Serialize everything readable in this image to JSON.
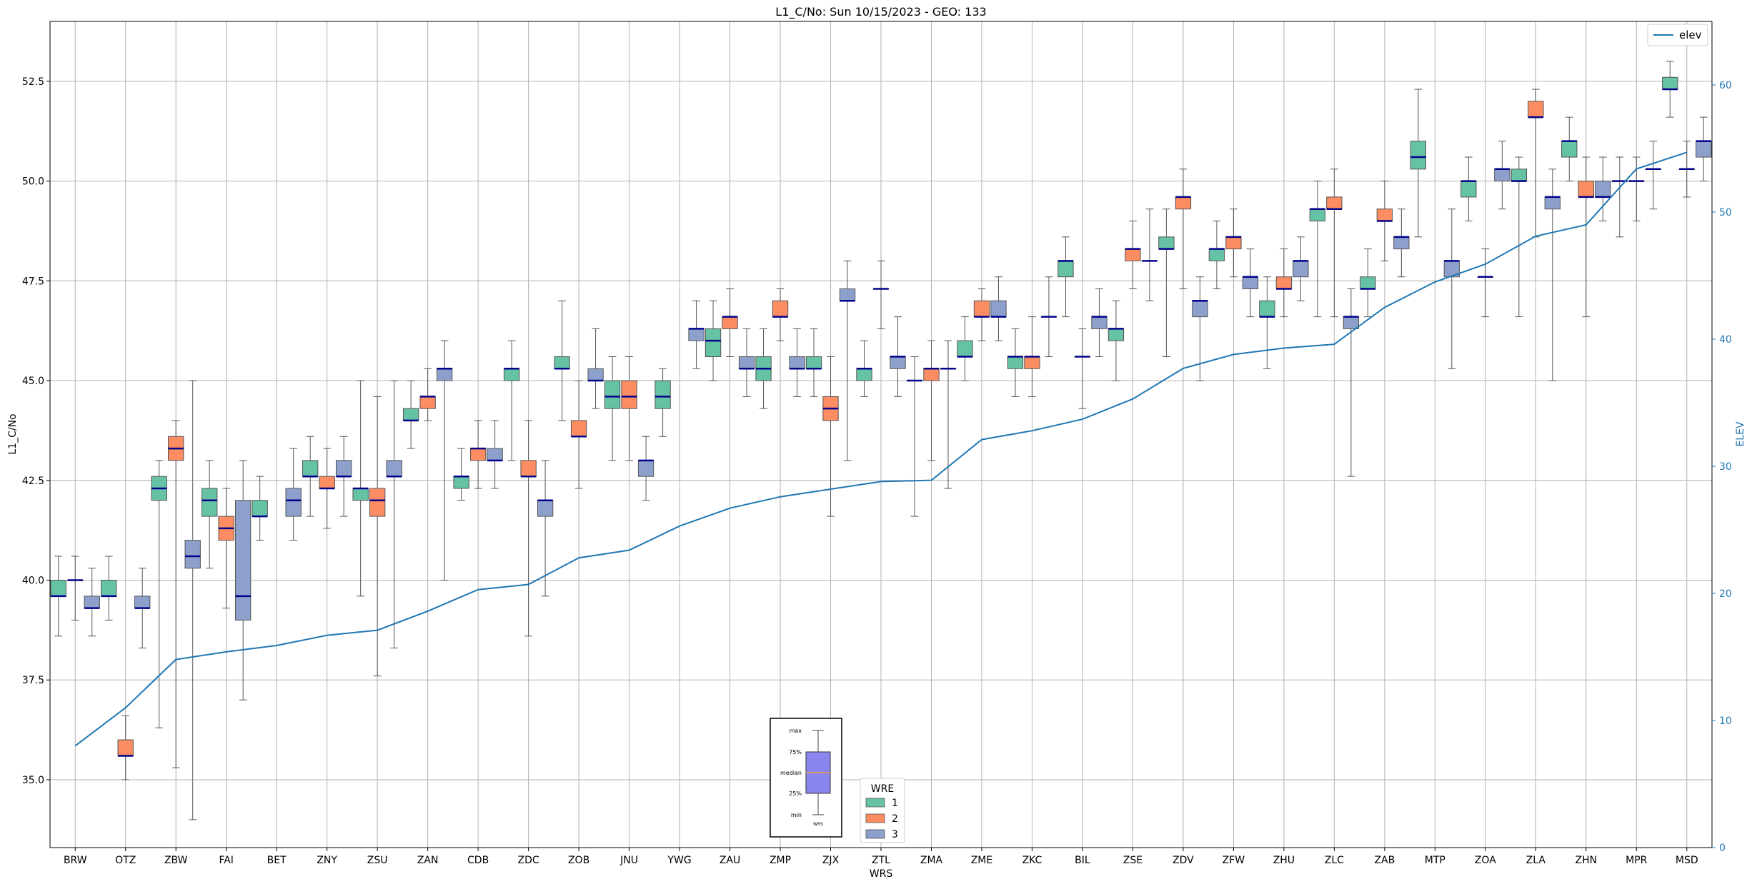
{
  "chart_data": {
    "type": "box",
    "title": "L1_C/No: Sun 10/15/2023 - GEO: 133",
    "xlabel": "WRS",
    "ylabel": "L1_C/No",
    "y2label": "ELEV",
    "ylim": [
      33.3,
      54.0
    ],
    "y2lim": [
      0,
      65
    ],
    "yticks": [
      "35.0",
      "37.5",
      "40.0",
      "42.5",
      "45.0",
      "47.5",
      "50.0",
      "52.5"
    ],
    "y2ticks": [
      "0",
      "10",
      "20",
      "30",
      "40",
      "50",
      "60"
    ],
    "grid": true,
    "categories": [
      "BRW",
      "OTZ",
      "ZBW",
      "FAI",
      "BET",
      "ZNY",
      "ZSU",
      "ZAN",
      "CDB",
      "ZDC",
      "ZOB",
      "JNU",
      "YWG",
      "ZAU",
      "ZMP",
      "ZJX",
      "ZTL",
      "ZMA",
      "ZME",
      "ZKC",
      "BIL",
      "ZSE",
      "ZDV",
      "ZFW",
      "ZHU",
      "ZLC",
      "ZAB",
      "MTP",
      "ZOA",
      "ZLA",
      "ZHN",
      "MPR",
      "MSD"
    ],
    "wre_colors": {
      "1": "#66c2a5",
      "2": "#fc8d62",
      "3": "#8da0cb"
    },
    "median_color": "#00008b",
    "line_series": {
      "name": "elev",
      "color": "#1f77b4",
      "values": [
        8.0,
        11.0,
        14.8,
        15.4,
        15.9,
        16.7,
        17.1,
        18.6,
        20.3,
        20.7,
        22.8,
        23.4,
        25.3,
        26.7,
        27.6,
        28.2,
        28.8,
        28.9,
        32.1,
        32.8,
        33.7,
        35.3,
        37.7,
        38.8,
        39.3,
        39.6,
        42.5,
        44.5,
        45.9,
        48.1,
        49.0,
        53.4,
        54.7
      ]
    },
    "boxes": [
      {
        "station": "BRW",
        "wre": 1,
        "min": 38.6,
        "q1": 39.6,
        "med": 39.6,
        "q3": 40.0,
        "max": 40.6
      },
      {
        "station": "BRW",
        "wre": 2,
        "min": 39.0,
        "q1": 40.0,
        "med": 40.0,
        "q3": 40.0,
        "max": 40.6
      },
      {
        "station": "BRW",
        "wre": 3,
        "min": 38.6,
        "q1": 39.3,
        "med": 39.3,
        "q3": 39.6,
        "max": 40.3
      },
      {
        "station": "OTZ",
        "wre": 1,
        "min": 39.0,
        "q1": 39.6,
        "med": 39.6,
        "q3": 40.0,
        "max": 40.6
      },
      {
        "station": "OTZ",
        "wre": 2,
        "min": 35.0,
        "q1": 35.6,
        "med": 35.6,
        "q3": 36.0,
        "max": 36.6
      },
      {
        "station": "OTZ",
        "wre": 3,
        "min": 38.3,
        "q1": 39.3,
        "med": 39.3,
        "q3": 39.6,
        "max": 40.3
      },
      {
        "station": "ZBW",
        "wre": 1,
        "min": 36.3,
        "q1": 42.0,
        "med": 42.3,
        "q3": 42.6,
        "max": 43.0
      },
      {
        "station": "ZBW",
        "wre": 2,
        "min": 35.3,
        "q1": 43.0,
        "med": 43.3,
        "q3": 43.6,
        "max": 44.0
      },
      {
        "station": "ZBW",
        "wre": 3,
        "min": 34.0,
        "q1": 40.3,
        "med": 40.6,
        "q3": 41.0,
        "max": 45.0
      },
      {
        "station": "FAI",
        "wre": 1,
        "min": 40.3,
        "q1": 41.6,
        "med": 42.0,
        "q3": 42.3,
        "max": 43.0
      },
      {
        "station": "FAI",
        "wre": 2,
        "min": 39.3,
        "q1": 41.0,
        "med": 41.3,
        "q3": 41.6,
        "max": 42.3
      },
      {
        "station": "FAI",
        "wre": 3,
        "min": 37.0,
        "q1": 39.0,
        "med": 39.6,
        "q3": 42.0,
        "max": 43.0
      },
      {
        "station": "BET",
        "wre": 1,
        "min": 41.0,
        "q1": 41.6,
        "med": 41.6,
        "q3": 42.0,
        "max": 42.6
      },
      {
        "station": "BET",
        "wre": 3,
        "min": 41.0,
        "q1": 41.6,
        "med": 42.0,
        "q3": 42.3,
        "max": 43.3
      },
      {
        "station": "ZNY",
        "wre": 1,
        "min": 41.6,
        "q1": 42.6,
        "med": 42.6,
        "q3": 43.0,
        "max": 43.6
      },
      {
        "station": "ZNY",
        "wre": 2,
        "min": 41.3,
        "q1": 42.3,
        "med": 42.3,
        "q3": 42.6,
        "max": 43.3
      },
      {
        "station": "ZNY",
        "wre": 3,
        "min": 41.6,
        "q1": 42.6,
        "med": 42.6,
        "q3": 43.0,
        "max": 43.6
      },
      {
        "station": "ZSU",
        "wre": 1,
        "min": 39.6,
        "q1": 42.0,
        "med": 42.3,
        "q3": 42.3,
        "max": 45.0
      },
      {
        "station": "ZSU",
        "wre": 2,
        "min": 37.6,
        "q1": 41.6,
        "med": 42.0,
        "q3": 42.3,
        "max": 44.6
      },
      {
        "station": "ZSU",
        "wre": 3,
        "min": 38.3,
        "q1": 42.6,
        "med": 42.6,
        "q3": 43.0,
        "max": 45.0
      },
      {
        "station": "ZAN",
        "wre": 1,
        "min": 43.3,
        "q1": 44.0,
        "med": 44.0,
        "q3": 44.3,
        "max": 45.0
      },
      {
        "station": "ZAN",
        "wre": 2,
        "min": 44.0,
        "q1": 44.3,
        "med": 44.6,
        "q3": 44.6,
        "max": 45.3
      },
      {
        "station": "ZAN",
        "wre": 3,
        "min": 40.0,
        "q1": 45.0,
        "med": 45.3,
        "q3": 45.3,
        "max": 46.0
      },
      {
        "station": "CDB",
        "wre": 1,
        "min": 42.0,
        "q1": 42.3,
        "med": 42.6,
        "q3": 42.6,
        "max": 43.3
      },
      {
        "station": "CDB",
        "wre": 2,
        "min": 42.3,
        "q1": 43.0,
        "med": 43.3,
        "q3": 43.3,
        "max": 44.0
      },
      {
        "station": "CDB",
        "wre": 3,
        "min": 42.3,
        "q1": 43.0,
        "med": 43.0,
        "q3": 43.3,
        "max": 44.0
      },
      {
        "station": "ZDC",
        "wre": 1,
        "min": 43.0,
        "q1": 45.0,
        "med": 45.3,
        "q3": 45.3,
        "max": 46.0
      },
      {
        "station": "ZDC",
        "wre": 2,
        "min": 38.6,
        "q1": 42.6,
        "med": 42.6,
        "q3": 43.0,
        "max": 44.0
      },
      {
        "station": "ZDC",
        "wre": 3,
        "min": 39.6,
        "q1": 41.6,
        "med": 42.0,
        "q3": 42.0,
        "max": 43.0
      },
      {
        "station": "ZOB",
        "wre": 1,
        "min": 44.0,
        "q1": 45.3,
        "med": 45.3,
        "q3": 45.6,
        "max": 47.0
      },
      {
        "station": "ZOB",
        "wre": 2,
        "min": 42.3,
        "q1": 43.6,
        "med": 43.6,
        "q3": 44.0,
        "max": 45.0
      },
      {
        "station": "ZOB",
        "wre": 3,
        "min": 44.3,
        "q1": 45.0,
        "med": 45.0,
        "q3": 45.3,
        "max": 46.3
      },
      {
        "station": "JNU",
        "wre": 1,
        "min": 43.0,
        "q1": 44.3,
        "med": 44.6,
        "q3": 45.0,
        "max": 45.6
      },
      {
        "station": "JNU",
        "wre": 2,
        "min": 43.0,
        "q1": 44.3,
        "med": 44.6,
        "q3": 45.0,
        "max": 45.6
      },
      {
        "station": "JNU",
        "wre": 3,
        "min": 42.0,
        "q1": 42.6,
        "med": 43.0,
        "q3": 43.0,
        "max": 43.6
      },
      {
        "station": "YWG",
        "wre": 1,
        "min": 43.6,
        "q1": 44.3,
        "med": 44.6,
        "q3": 45.0,
        "max": 45.3
      },
      {
        "station": "YWG",
        "wre": 3,
        "min": 45.3,
        "q1": 46.0,
        "med": 46.3,
        "q3": 46.3,
        "max": 47.0
      },
      {
        "station": "ZAU",
        "wre": 1,
        "min": 45.0,
        "q1": 45.6,
        "med": 46.0,
        "q3": 46.3,
        "max": 47.0
      },
      {
        "station": "ZAU",
        "wre": 2,
        "min": 45.6,
        "q1": 46.3,
        "med": 46.6,
        "q3": 46.6,
        "max": 47.3
      },
      {
        "station": "ZAU",
        "wre": 3,
        "min": 44.6,
        "q1": 45.3,
        "med": 45.3,
        "q3": 45.6,
        "max": 46.3
      },
      {
        "station": "ZMP",
        "wre": 1,
        "min": 44.3,
        "q1": 45.0,
        "med": 45.3,
        "q3": 45.6,
        "max": 46.3
      },
      {
        "station": "ZMP",
        "wre": 2,
        "min": 46.0,
        "q1": 46.6,
        "med": 46.6,
        "q3": 47.0,
        "max": 47.3
      },
      {
        "station": "ZMP",
        "wre": 3,
        "min": 44.6,
        "q1": 45.3,
        "med": 45.3,
        "q3": 45.6,
        "max": 46.3
      },
      {
        "station": "ZJX",
        "wre": 1,
        "min": 44.6,
        "q1": 45.3,
        "med": 45.3,
        "q3": 45.6,
        "max": 46.3
      },
      {
        "station": "ZJX",
        "wre": 2,
        "min": 41.6,
        "q1": 44.0,
        "med": 44.3,
        "q3": 44.6,
        "max": 45.6
      },
      {
        "station": "ZJX",
        "wre": 3,
        "min": 43.0,
        "q1": 47.0,
        "med": 47.0,
        "q3": 47.3,
        "max": 48.0
      },
      {
        "station": "ZTL",
        "wre": 1,
        "min": 44.6,
        "q1": 45.0,
        "med": 45.3,
        "q3": 45.3,
        "max": 46.0
      },
      {
        "station": "ZTL",
        "wre": 2,
        "min": 46.3,
        "q1": 47.3,
        "med": 47.3,
        "q3": 47.3,
        "max": 48.0
      },
      {
        "station": "ZTL",
        "wre": 3,
        "min": 44.6,
        "q1": 45.3,
        "med": 45.6,
        "q3": 45.6,
        "max": 46.6
      },
      {
        "station": "ZMA",
        "wre": 1,
        "min": 41.6,
        "q1": 45.0,
        "med": 45.0,
        "q3": 45.0,
        "max": 45.6
      },
      {
        "station": "ZMA",
        "wre": 2,
        "min": 43.0,
        "q1": 45.0,
        "med": 45.3,
        "q3": 45.3,
        "max": 46.0
      },
      {
        "station": "ZMA",
        "wre": 3,
        "min": 42.3,
        "q1": 45.3,
        "med": 45.3,
        "q3": 45.3,
        "max": 46.0
      },
      {
        "station": "ZME",
        "wre": 1,
        "min": 45.0,
        "q1": 45.6,
        "med": 45.6,
        "q3": 46.0,
        "max": 46.6
      },
      {
        "station": "ZME",
        "wre": 2,
        "min": 46.0,
        "q1": 46.6,
        "med": 46.6,
        "q3": 47.0,
        "max": 47.3
      },
      {
        "station": "ZME",
        "wre": 3,
        "min": 46.0,
        "q1": 46.6,
        "med": 46.6,
        "q3": 47.0,
        "max": 47.6
      },
      {
        "station": "ZKC",
        "wre": 1,
        "min": 44.6,
        "q1": 45.3,
        "med": 45.6,
        "q3": 45.6,
        "max": 46.3
      },
      {
        "station": "ZKC",
        "wre": 2,
        "min": 44.6,
        "q1": 45.3,
        "med": 45.6,
        "q3": 45.6,
        "max": 46.6
      },
      {
        "station": "ZKC",
        "wre": 3,
        "min": 45.6,
        "q1": 46.6,
        "med": 46.6,
        "q3": 46.6,
        "max": 47.6
      },
      {
        "station": "BIL",
        "wre": 1,
        "min": 46.6,
        "q1": 47.6,
        "med": 48.0,
        "q3": 48.0,
        "max": 48.6
      },
      {
        "station": "BIL",
        "wre": 2,
        "min": 44.3,
        "q1": 45.6,
        "med": 45.6,
        "q3": 45.6,
        "max": 46.3
      },
      {
        "station": "BIL",
        "wre": 3,
        "min": 45.6,
        "q1": 46.3,
        "med": 46.6,
        "q3": 46.6,
        "max": 47.3
      },
      {
        "station": "ZSE",
        "wre": 1,
        "min": 45.0,
        "q1": 46.0,
        "med": 46.3,
        "q3": 46.3,
        "max": 47.0
      },
      {
        "station": "ZSE",
        "wre": 2,
        "min": 47.3,
        "q1": 48.0,
        "med": 48.3,
        "q3": 48.3,
        "max": 49.0
      },
      {
        "station": "ZSE",
        "wre": 3,
        "min": 47.0,
        "q1": 48.0,
        "med": 48.0,
        "q3": 48.0,
        "max": 49.3
      },
      {
        "station": "ZDV",
        "wre": 1,
        "min": 45.6,
        "q1": 48.3,
        "med": 48.3,
        "q3": 48.6,
        "max": 49.3
      },
      {
        "station": "ZDV",
        "wre": 2,
        "min": 47.3,
        "q1": 49.3,
        "med": 49.6,
        "q3": 49.6,
        "max": 50.3
      },
      {
        "station": "ZDV",
        "wre": 3,
        "min": 45.0,
        "q1": 46.6,
        "med": 47.0,
        "q3": 47.0,
        "max": 47.6
      },
      {
        "station": "ZFW",
        "wre": 1,
        "min": 47.3,
        "q1": 48.0,
        "med": 48.3,
        "q3": 48.3,
        "max": 49.0
      },
      {
        "station": "ZFW",
        "wre": 2,
        "min": 47.6,
        "q1": 48.3,
        "med": 48.6,
        "q3": 48.6,
        "max": 49.3
      },
      {
        "station": "ZFW",
        "wre": 3,
        "min": 46.6,
        "q1": 47.3,
        "med": 47.6,
        "q3": 47.6,
        "max": 48.3
      },
      {
        "station": "ZHU",
        "wre": 1,
        "min": 45.3,
        "q1": 46.6,
        "med": 46.6,
        "q3": 47.0,
        "max": 47.6
      },
      {
        "station": "ZHU",
        "wre": 2,
        "min": 46.6,
        "q1": 47.3,
        "med": 47.3,
        "q3": 47.6,
        "max": 48.3
      },
      {
        "station": "ZHU",
        "wre": 3,
        "min": 47.0,
        "q1": 47.6,
        "med": 48.0,
        "q3": 48.0,
        "max": 48.6
      },
      {
        "station": "ZLC",
        "wre": 1,
        "min": 46.6,
        "q1": 49.0,
        "med": 49.3,
        "q3": 49.3,
        "max": 50.0
      },
      {
        "station": "ZLC",
        "wre": 2,
        "min": 46.6,
        "q1": 49.3,
        "med": 49.3,
        "q3": 49.6,
        "max": 50.3
      },
      {
        "station": "ZLC",
        "wre": 3,
        "min": 42.6,
        "q1": 46.3,
        "med": 46.6,
        "q3": 46.6,
        "max": 47.3
      },
      {
        "station": "ZAB",
        "wre": 1,
        "min": 46.6,
        "q1": 47.3,
        "med": 47.3,
        "q3": 47.6,
        "max": 48.3
      },
      {
        "station": "ZAB",
        "wre": 2,
        "min": 48.0,
        "q1": 49.0,
        "med": 49.0,
        "q3": 49.3,
        "max": 50.0
      },
      {
        "station": "ZAB",
        "wre": 3,
        "min": 47.6,
        "q1": 48.3,
        "med": 48.6,
        "q3": 48.6,
        "max": 49.3
      },
      {
        "station": "MTP",
        "wre": 1,
        "min": 48.6,
        "q1": 50.3,
        "med": 50.6,
        "q3": 51.0,
        "max": 52.3
      },
      {
        "station": "MTP",
        "wre": 3,
        "min": 45.3,
        "q1": 47.6,
        "med": 48.0,
        "q3": 48.0,
        "max": 49.3
      },
      {
        "station": "ZOA",
        "wre": 1,
        "min": 49.0,
        "q1": 49.6,
        "med": 50.0,
        "q3": 50.0,
        "max": 50.6
      },
      {
        "station": "ZOA",
        "wre": 2,
        "min": 46.6,
        "q1": 47.6,
        "med": 47.6,
        "q3": 47.6,
        "max": 48.3
      },
      {
        "station": "ZOA",
        "wre": 3,
        "min": 49.3,
        "q1": 50.0,
        "med": 50.3,
        "q3": 50.3,
        "max": 51.0
      },
      {
        "station": "ZLA",
        "wre": 1,
        "min": 46.6,
        "q1": 50.0,
        "med": 50.0,
        "q3": 50.3,
        "max": 50.6
      },
      {
        "station": "ZLA",
        "wre": 2,
        "min": 48.6,
        "q1": 51.6,
        "med": 51.6,
        "q3": 52.0,
        "max": 52.3
      },
      {
        "station": "ZLA",
        "wre": 3,
        "min": 45.0,
        "q1": 49.3,
        "med": 49.6,
        "q3": 49.6,
        "max": 50.3
      },
      {
        "station": "ZHN",
        "wre": 1,
        "min": 50.0,
        "q1": 50.6,
        "med": 51.0,
        "q3": 51.0,
        "max": 51.6
      },
      {
        "station": "ZHN",
        "wre": 2,
        "min": 46.6,
        "q1": 49.6,
        "med": 49.6,
        "q3": 50.0,
        "max": 50.6
      },
      {
        "station": "ZHN",
        "wre": 3,
        "min": 49.0,
        "q1": 49.6,
        "med": 49.6,
        "q3": 50.0,
        "max": 50.6
      },
      {
        "station": "MPR",
        "wre": 1,
        "min": 48.6,
        "q1": 50.0,
        "med": 50.0,
        "q3": 50.0,
        "max": 50.6
      },
      {
        "station": "MPR",
        "wre": 2,
        "min": 49.0,
        "q1": 50.0,
        "med": 50.0,
        "q3": 50.0,
        "max": 50.6
      },
      {
        "station": "MPR",
        "wre": 3,
        "min": 49.3,
        "q1": 50.3,
        "med": 50.3,
        "q3": 50.3,
        "max": 51.0
      },
      {
        "station": "MSD",
        "wre": 1,
        "min": 51.6,
        "q1": 52.3,
        "med": 52.3,
        "q3": 52.6,
        "max": 53.0
      },
      {
        "station": "MSD",
        "wre": 2,
        "min": 49.6,
        "q1": 50.3,
        "med": 50.3,
        "q3": 50.3,
        "max": 51.0
      },
      {
        "station": "MSD",
        "wre": 3,
        "min": 50.0,
        "q1": 50.6,
        "med": 51.0,
        "q3": 51.0,
        "max": 51.6
      }
    ]
  },
  "legend_top": {
    "label": "elev"
  },
  "legend_wre": {
    "title": "WRE",
    "items": [
      "1",
      "2",
      "3"
    ]
  },
  "key_box": {
    "labels": [
      "max",
      "75%",
      "median",
      "25%",
      "min"
    ],
    "caption": "WRS"
  }
}
